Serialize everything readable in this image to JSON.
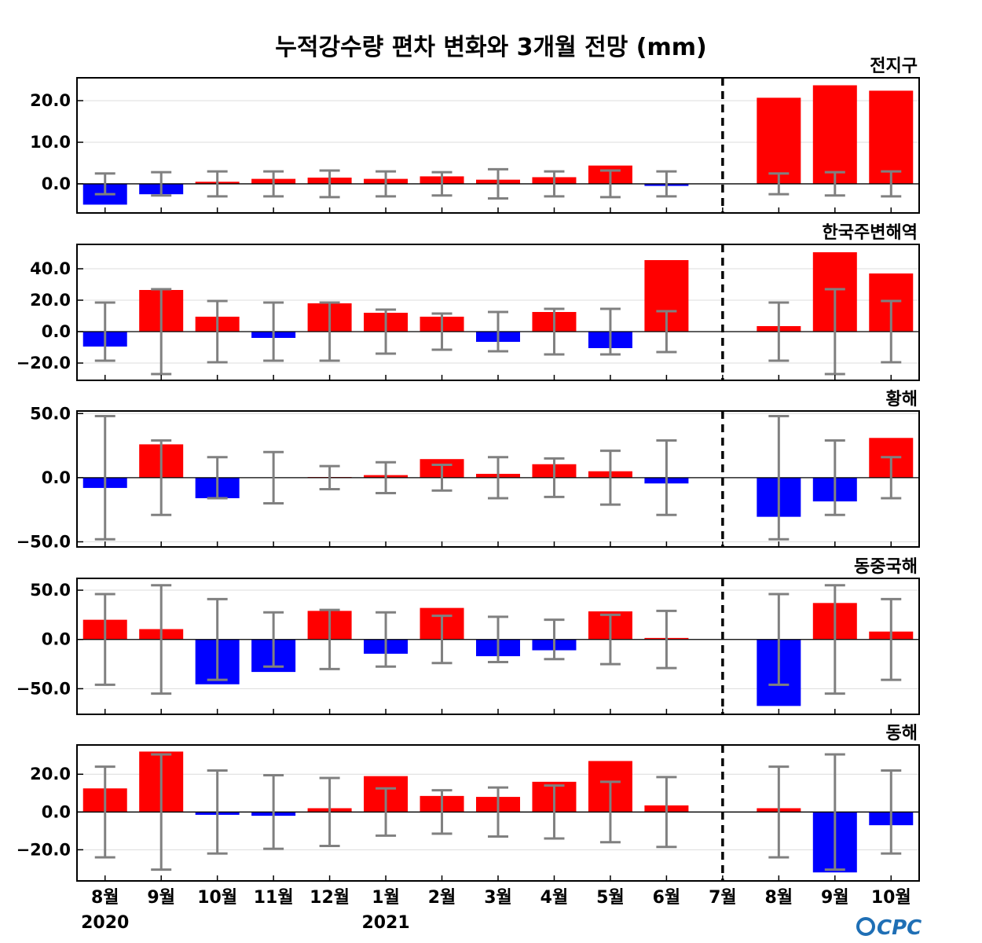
{
  "chart_data": {
    "type": "bar",
    "title": "누적강수량 편차 변화와 3개월 전망 (mm)",
    "categories": [
      "8월",
      "9월",
      "10월",
      "11월",
      "12월",
      "1월",
      "2월",
      "3월",
      "4월",
      "5월",
      "6월",
      "7월",
      "8월",
      "9월",
      "10월"
    ],
    "year_labels": [
      {
        "category_index": 0,
        "text": "2020"
      },
      {
        "category_index": 5,
        "text": "2021"
      }
    ],
    "forecast_divider_after": "7월",
    "colors": {
      "positive": "#ff0000",
      "negative": "#0000ff",
      "error_bar": "#808080"
    },
    "logo_text": "CPC",
    "panels": [
      {
        "name": "전지구",
        "ticks": [
          0,
          10,
          20
        ],
        "tick_labels": [
          "0.0",
          "10.0",
          "20.0"
        ],
        "ylim": [
          -7,
          25.5
        ],
        "values": [
          -5,
          -2.5,
          0.5,
          1.2,
          1.5,
          1.2,
          1.8,
          1.0,
          1.6,
          4.4,
          -0.5,
          0,
          20.7,
          23.7,
          22.4
        ],
        "errors": [
          2.5,
          2.8,
          3.0,
          3.0,
          3.2,
          3.0,
          2.8,
          3.5,
          3.0,
          3.2,
          3.0,
          0,
          2.5,
          2.8,
          3.0
        ]
      },
      {
        "name": "한국주변해역",
        "ticks": [
          -20,
          0,
          20,
          40
        ],
        "tick_labels": [
          "−20.0",
          "0.0",
          "20.0",
          "40.0"
        ],
        "ylim": [
          -31,
          55.5
        ],
        "values": [
          -9.5,
          26.5,
          9.5,
          -4,
          18,
          12,
          9.5,
          -6.5,
          12.5,
          -10.5,
          45.5,
          0,
          3.5,
          50.5,
          37
        ],
        "errors": [
          18.5,
          27,
          19.5,
          18.5,
          18.5,
          14,
          11.5,
          12.5,
          14.5,
          14.5,
          13,
          0,
          18.5,
          27,
          19.5
        ]
      },
      {
        "name": "황해",
        "ticks": [
          -50,
          0,
          50
        ],
        "tick_labels": [
          "−50.0",
          "0.0",
          "50.0"
        ],
        "ylim": [
          -54,
          52
        ],
        "values": [
          -8,
          26,
          -16,
          0,
          0.5,
          2,
          14.5,
          3,
          10.5,
          5,
          -4.5,
          0,
          -30.5,
          -18.5,
          31
        ],
        "errors": [
          48,
          29,
          16,
          20,
          9,
          12,
          10,
          16,
          15,
          21,
          29,
          0,
          48,
          29,
          16
        ]
      },
      {
        "name": "동중국해",
        "ticks": [
          -50,
          0,
          50
        ],
        "tick_labels": [
          "−50.0",
          "0.0",
          "50.0"
        ],
        "ylim": [
          -76,
          62
        ],
        "values": [
          20,
          10.5,
          -45.5,
          -33,
          29,
          -14.5,
          32,
          -17,
          -11,
          28.5,
          1.5,
          0,
          -67.5,
          37,
          8
        ],
        "errors": [
          46,
          55,
          41,
          27.5,
          30,
          27.5,
          24,
          23,
          20,
          25,
          29,
          0,
          46,
          55,
          41
        ]
      },
      {
        "name": "동해",
        "ticks": [
          -20,
          0,
          20
        ],
        "tick_labels": [
          "−20.0",
          "0.0",
          "20.0"
        ],
        "ylim": [
          -36.5,
          35.5
        ],
        "values": [
          12.5,
          32,
          -1.5,
          -2,
          2,
          19,
          8.5,
          8,
          16,
          27,
          3.5,
          0,
          2,
          -32,
          -7
        ],
        "errors": [
          24,
          30.5,
          22,
          19.5,
          18,
          12.5,
          11.5,
          13,
          14,
          16,
          18.5,
          0,
          24,
          30.5,
          22
        ]
      }
    ]
  }
}
